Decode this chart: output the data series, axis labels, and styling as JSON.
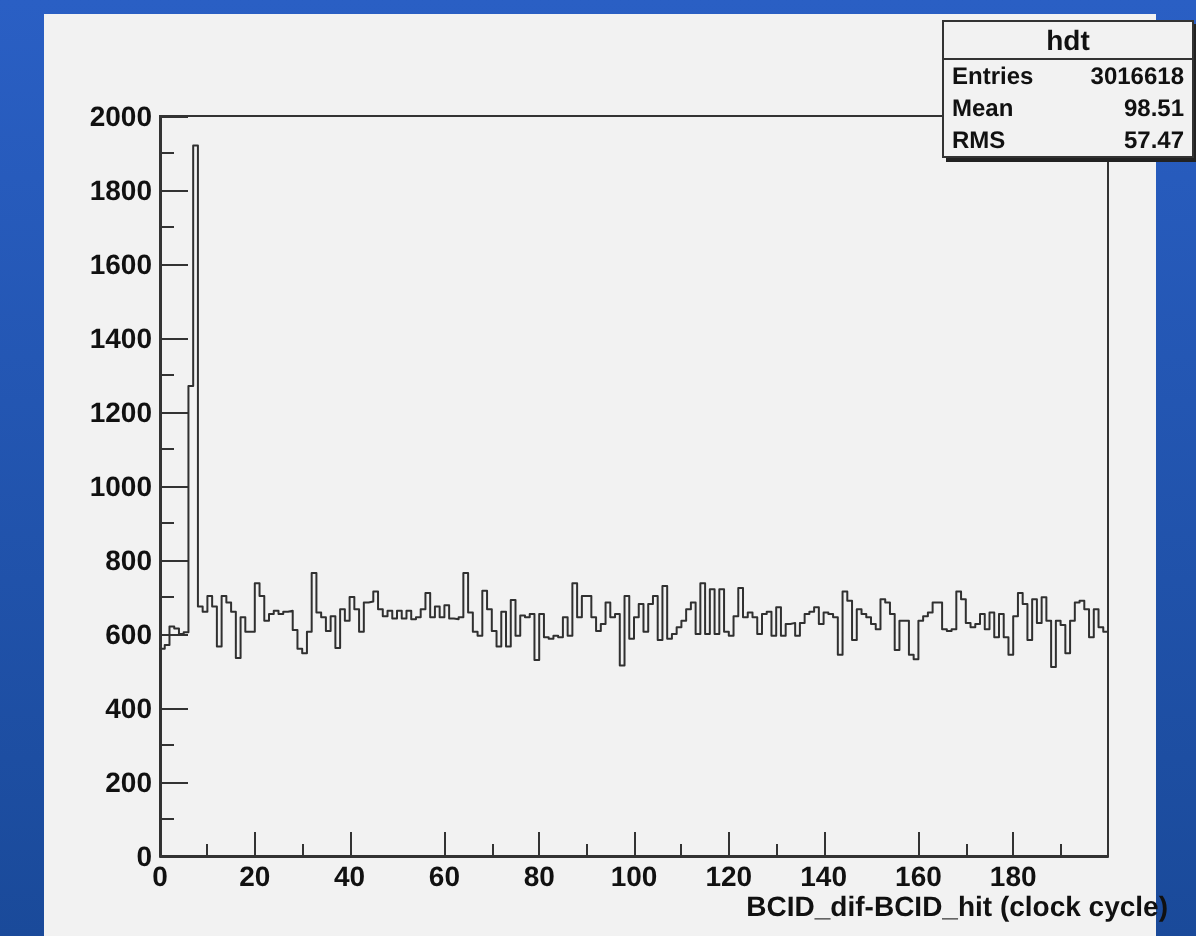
{
  "chart_data": {
    "type": "histogram",
    "xlabel": "BCID_dif-BCID_hit (clock cycle)",
    "annotations": [
      "hdt",
      "Entries 3016618",
      "Mean 98.51",
      "RMS 57.47"
    ],
    "color": "#303030",
    "bins": [
      0,
      1,
      2,
      3,
      4,
      5,
      6,
      7,
      8,
      9,
      10,
      11,
      12,
      13,
      14,
      15,
      16,
      17,
      18,
      19,
      20,
      21,
      22,
      23,
      24,
      25,
      26,
      27,
      28,
      29,
      30,
      31,
      32,
      33,
      34,
      35,
      36,
      37,
      38,
      39,
      40,
      41,
      42,
      43,
      44,
      45,
      46,
      47,
      48,
      49,
      50,
      51,
      52,
      53,
      54,
      55,
      56,
      57,
      58,
      59,
      60,
      61,
      62,
      63,
      64,
      65,
      66,
      67,
      68,
      69,
      70,
      71,
      72,
      73,
      74,
      75,
      76,
      77,
      78,
      79,
      80,
      81,
      82,
      83,
      84,
      85,
      86,
      87,
      88,
      89,
      90,
      91,
      92,
      93,
      94,
      95,
      96,
      97,
      98,
      99,
      100,
      101,
      102,
      103,
      104,
      105,
      106,
      107,
      108,
      109,
      110,
      111,
      112,
      113,
      114,
      115,
      116,
      117,
      118,
      119,
      120,
      121,
      122,
      123,
      124,
      125,
      126,
      127,
      128,
      129,
      130,
      131,
      132,
      133,
      134,
      135,
      136,
      137,
      138,
      139,
      140,
      141,
      142,
      143,
      144,
      145,
      146,
      147,
      148,
      149,
      150,
      151,
      152,
      153,
      154,
      155,
      156,
      157,
      158,
      159,
      160,
      161,
      162,
      163,
      164,
      165,
      166,
      167,
      168,
      169,
      170,
      171,
      172,
      173,
      174,
      175,
      176,
      177,
      178,
      179,
      180,
      181,
      182,
      183,
      184,
      185,
      186,
      187,
      188,
      189,
      190,
      191,
      192,
      193,
      194,
      195,
      196,
      197,
      198,
      199,
      200
    ],
    "values": [
      560,
      570,
      620,
      615,
      600,
      605,
      1270,
      1920,
      674,
      660,
      703,
      674,
      566,
      703,
      685,
      660,
      535,
      645,
      606,
      606,
      737,
      703,
      636,
      654,
      663,
      654,
      660,
      663,
      611,
      560,
      548,
      606,
      765,
      658,
      645,
      608,
      648,
      562,
      667,
      636,
      700,
      667,
      606,
      685,
      688,
      715,
      667,
      648,
      663,
      642,
      663,
      642,
      663,
      640,
      645,
      667,
      711,
      645,
      674,
      645,
      678,
      642,
      640,
      645,
      765,
      658,
      606,
      595,
      717,
      667,
      608,
      566,
      660,
      566,
      692,
      595,
      650,
      645,
      654,
      530,
      654,
      591,
      587,
      595,
      591,
      645,
      595,
      737,
      645,
      703,
      703,
      645,
      608,
      627,
      685,
      645,
      654,
      515,
      703,
      587,
      645,
      681,
      606,
      681,
      703,
      584,
      730,
      587,
      600,
      618,
      636,
      667,
      685,
      600,
      737,
      600,
      721,
      600,
      721,
      606,
      595,
      648,
      724,
      645,
      658,
      645,
      600,
      654,
      660,
      595,
      672,
      595,
      627,
      630,
      595,
      630,
      654,
      660,
      672,
      627,
      658,
      654,
      645,
      544,
      715,
      690,
      584,
      667,
      654,
      645,
      627,
      613,
      694,
      685,
      654,
      557,
      636,
      636,
      544,
      532,
      636,
      648,
      658,
      685,
      685,
      613,
      608,
      613,
      715,
      694,
      630,
      618,
      627,
      654,
      613,
      658,
      591,
      654,
      591,
      544,
      648,
      711,
      681,
      584,
      694,
      630,
      699,
      636,
      511,
      636,
      624,
      548,
      636,
      685,
      690,
      667,
      591,
      667,
      618,
      606
    ],
    "xlim": [
      0,
      200
    ],
    "xticks": [
      0,
      20,
      40,
      60,
      80,
      100,
      120,
      140,
      160,
      180
    ],
    "ylim": [
      0,
      2000
    ],
    "yticks": [
      0,
      200,
      400,
      600,
      800,
      1000,
      1200,
      1400,
      1600,
      1800,
      2000
    ]
  }
}
